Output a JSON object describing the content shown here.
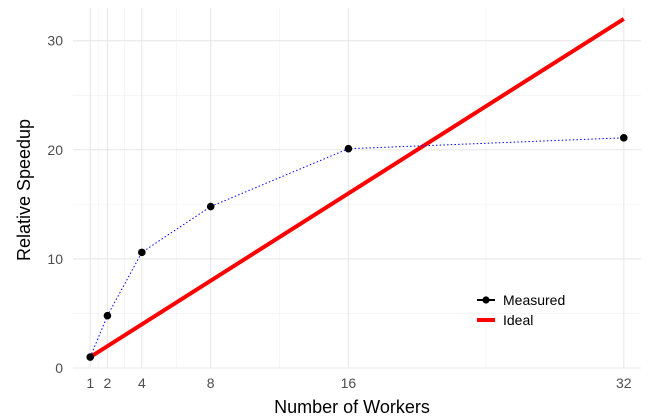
{
  "chart_data": {
    "type": "line",
    "xlabel": "Number of Workers",
    "ylabel": "Relative Speedup",
    "x_ticks": [
      1,
      2,
      4,
      8,
      16,
      32
    ],
    "y_ticks": [
      0,
      10,
      20,
      30
    ],
    "xlim": [
      0,
      33
    ],
    "ylim": [
      0,
      33
    ],
    "grid": true,
    "legend_position": "bottom-right",
    "series": [
      {
        "name": "Measured",
        "style": "dotted-with-points",
        "line_color": "#0000ff",
        "point_color": "#000000",
        "points": [
          {
            "x": 1,
            "y": 1.0
          },
          {
            "x": 2,
            "y": 4.8
          },
          {
            "x": 4,
            "y": 10.6
          },
          {
            "x": 8,
            "y": 14.8
          },
          {
            "x": 16,
            "y": 20.1
          },
          {
            "x": 32,
            "y": 21.1
          }
        ]
      },
      {
        "name": "Ideal",
        "style": "solid",
        "line_color": "#ff0000",
        "points": [
          {
            "x": 1,
            "y": 1
          },
          {
            "x": 32,
            "y": 32
          }
        ]
      }
    ]
  }
}
